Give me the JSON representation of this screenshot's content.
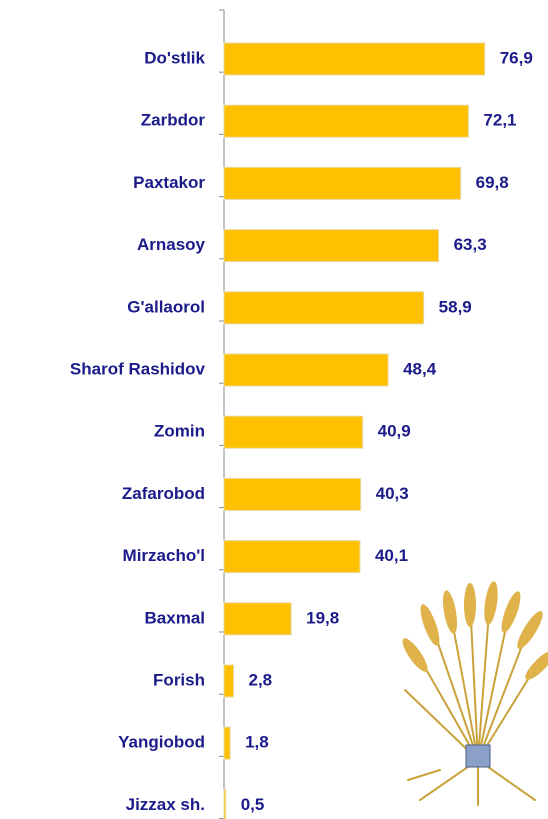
{
  "chart_data": {
    "type": "bar",
    "orientation": "horizontal",
    "categories": [
      "Do'stlik",
      "Zarbdor",
      "Paxtakor",
      "Arnasoy",
      "G'allaorol",
      "Sharof Rashidov",
      "Zomin",
      "Zafarobod",
      "Mirzacho'l",
      "Baxmal",
      "Forish",
      "Yangiobod",
      "Jizzax sh."
    ],
    "values": [
      76.9,
      72.1,
      69.8,
      63.3,
      58.9,
      48.4,
      40.9,
      40.3,
      40.1,
      19.8,
      2.8,
      1.8,
      0.5
    ],
    "value_labels": [
      "76,9",
      "72,1",
      "69,8",
      "63,3",
      "58,9",
      "48,4",
      "40,9",
      "40,3",
      "40,1",
      "19,8",
      "2,8",
      "1,8",
      "0,5"
    ],
    "color": "#ffc000"
  }
}
